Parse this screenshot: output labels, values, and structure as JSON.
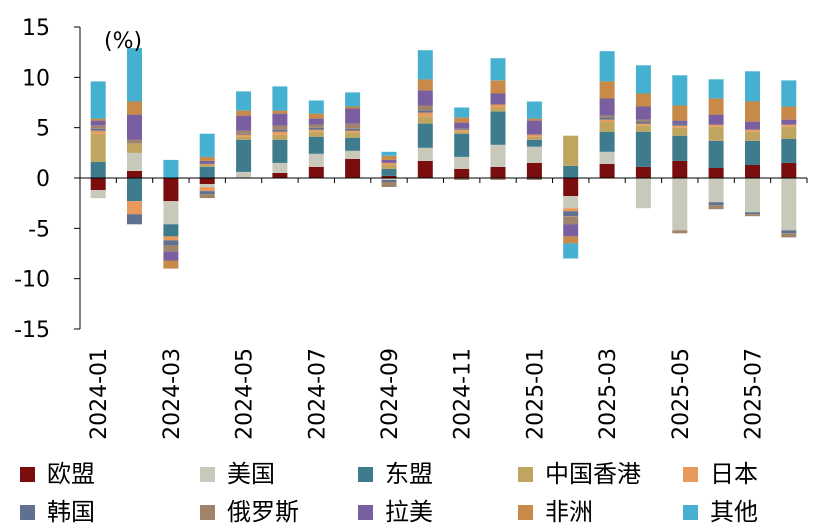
{
  "chart_data": {
    "type": "bar",
    "stacked": true,
    "unit_label": "(%)",
    "categories": [
      "2024-01",
      "2024-02",
      "2024-03",
      "2024-04",
      "2024-05",
      "2024-06",
      "2024-07",
      "2024-08",
      "2024-09",
      "2024-10",
      "2024-11",
      "2024-12",
      "2025-01",
      "2025-02",
      "2025-03",
      "2025-04",
      "2025-05",
      "2025-06",
      "2025-07",
      "2025-08"
    ],
    "tick_labels": [
      "2024-01",
      "2024-03",
      "2024-05",
      "2024-07",
      "2024-09",
      "2024-11",
      "2025-01",
      "2025-03",
      "2025-05",
      "2025-07"
    ],
    "yticks": [
      15,
      10,
      5,
      0,
      -5,
      -10,
      -15
    ],
    "ylim": [
      -15,
      15
    ],
    "series": [
      {
        "name": "欧盟",
        "color": "#7a0e0e",
        "values": [
          -1.2,
          0.7,
          -2.3,
          -0.6,
          0,
          0.5,
          1.1,
          1.9,
          0.2,
          1.7,
          0.9,
          1.1,
          1.5,
          -1.8,
          1.4,
          1.1,
          1.7,
          1.0,
          1.3,
          1.5
        ]
      },
      {
        "name": "美国",
        "color": "#c8c8bb",
        "values": [
          -0.8,
          1.8,
          -2.3,
          -0.3,
          0.6,
          1.0,
          1.3,
          0.8,
          -0.2,
          1.3,
          1.2,
          2.2,
          1.6,
          -1.2,
          1.2,
          -3.0,
          -5.2,
          -2.4,
          -3.4,
          -5.2
        ]
      },
      {
        "name": "东盟",
        "color": "#3e7b8c",
        "values": [
          1.6,
          -2.3,
          -1.2,
          1.1,
          3.2,
          2.3,
          1.7,
          1.3,
          0.7,
          2.4,
          2.3,
          3.3,
          0.7,
          1.2,
          2.0,
          3.5,
          2.5,
          2.7,
          2.4,
          2.4
        ]
      },
      {
        "name": "中国香港",
        "color": "#c0a560",
        "values": [
          2.8,
          0.9,
          0,
          0.3,
          0.3,
          0.5,
          0.5,
          0.5,
          0.4,
          0.7,
          0.2,
          0.4,
          0.3,
          3.0,
          1.0,
          0.6,
          0.8,
          1.4,
          0.9,
          1.2
        ]
      },
      {
        "name": "日本",
        "color": "#e89a5c",
        "values": [
          0.3,
          -1.3,
          -0.4,
          -0.4,
          0.2,
          0.3,
          0.2,
          0.2,
          0.2,
          0.4,
          0.2,
          0.3,
          0.2,
          -0.3,
          0.2,
          0.2,
          0.2,
          0.2,
          0.2,
          0.2
        ]
      },
      {
        "name": "韩国",
        "color": "#607090",
        "values": [
          0.2,
          -1.0,
          -0.5,
          -0.3,
          0.1,
          0.2,
          0.2,
          0.2,
          -0.2,
          0.2,
          0.1,
          0.1,
          -0.1,
          -0.5,
          0.2,
          0.2,
          0.2,
          -0.3,
          -0.2,
          -0.3
        ]
      },
      {
        "name": "俄罗斯",
        "color": "#a08368",
        "values": [
          0.3,
          0.4,
          -0.6,
          -0.4,
          0.3,
          0.4,
          0.3,
          0.5,
          -0.5,
          0.5,
          -0.2,
          -0.2,
          -0.1,
          -0.8,
          0.2,
          0.2,
          -0.3,
          -0.4,
          -0.2,
          -0.4
        ]
      },
      {
        "name": "拉美",
        "color": "#7a5fa0",
        "values": [
          0.5,
          2.5,
          -0.9,
          0.3,
          1.5,
          1.2,
          0.6,
          1.5,
          0.3,
          1.5,
          0.6,
          1.0,
          1.4,
          -1.2,
          1.7,
          1.3,
          0.3,
          1.0,
          0.8,
          0.5
        ]
      },
      {
        "name": "非洲",
        "color": "#c88a48",
        "values": [
          0.2,
          1.3,
          -0.8,
          0.4,
          0.5,
          0.3,
          0.5,
          0.2,
          0.4,
          1.1,
          0.5,
          1.3,
          0.2,
          -0.7,
          1.7,
          1.3,
          1.5,
          1.6,
          2.0,
          1.3
        ]
      },
      {
        "name": "其他",
        "color": "#45b0cf",
        "values": [
          3.7,
          5.3,
          1.8,
          2.3,
          1.9,
          2.4,
          1.3,
          1.4,
          0.4,
          2.9,
          1.0,
          2.2,
          1.7,
          -1.5,
          3.0,
          2.8,
          3.0,
          1.9,
          3.0,
          2.6
        ]
      }
    ]
  }
}
